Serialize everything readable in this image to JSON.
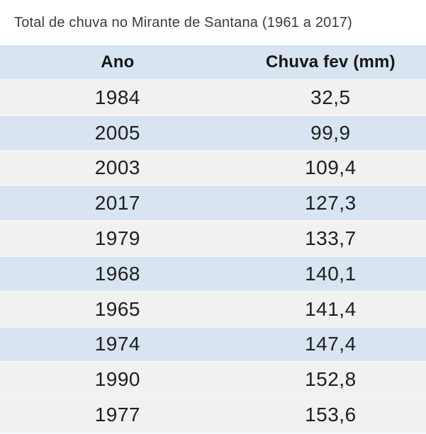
{
  "title": "Total de chuva no Mirante de Santana (1961 a 2017)",
  "table": {
    "columns": [
      "Ano",
      "Chuva fev (mm)"
    ],
    "rows": [
      {
        "ano": "1984",
        "chuva": "32,5"
      },
      {
        "ano": "2005",
        "chuva": "99,9"
      },
      {
        "ano": "2003",
        "chuva": "109,4"
      },
      {
        "ano": "2017",
        "chuva": "127,3"
      },
      {
        "ano": "1979",
        "chuva": "133,7"
      },
      {
        "ano": "1968",
        "chuva": "140,1"
      },
      {
        "ano": "1965",
        "chuva": "141,4"
      },
      {
        "ano": "1974",
        "chuva": "147,4"
      },
      {
        "ano": "1990",
        "chuva": "152,8"
      },
      {
        "ano": "1977",
        "chuva": "153,6"
      }
    ]
  },
  "colors": {
    "row_blue": "#d8e4f1",
    "row_gray": "#f1f1ef",
    "separator": "#f3f6f9",
    "title_text": "#3a3a3a",
    "header_text": "#161616",
    "cell_text": "#202020"
  },
  "chart_data": {
    "type": "table",
    "title": "Total de chuva no Mirante de Santana (1961 a 2017)",
    "columns": [
      "Ano",
      "Chuva fev (mm)"
    ],
    "rows": [
      [
        1984,
        32.5
      ],
      [
        2005,
        99.9
      ],
      [
        2003,
        109.4
      ],
      [
        2017,
        127.3
      ],
      [
        1979,
        133.7
      ],
      [
        1968,
        140.1
      ],
      [
        1965,
        141.4
      ],
      [
        1974,
        147.4
      ],
      [
        1990,
        152.8
      ],
      [
        1977,
        153.6
      ]
    ],
    "layout": {
      "header_background": "#d8e4f1",
      "zebra_striping": true,
      "last_row_background": "#f1f1ef",
      "sort": "Chuva fev (mm) ascending"
    }
  }
}
